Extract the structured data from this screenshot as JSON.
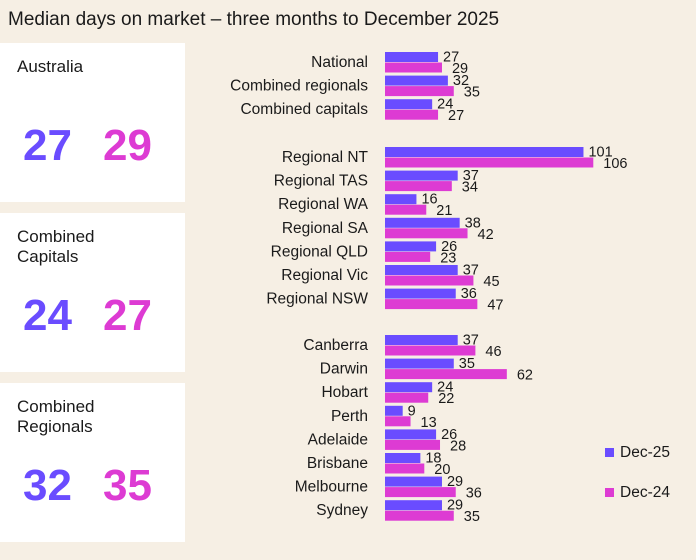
{
  "title": "Median days on market – three months to December 2025",
  "cards": [
    {
      "title": "Australia",
      "dec25": "27",
      "dec24": "29"
    },
    {
      "title": "Combined Capitals",
      "dec25": "24",
      "dec24": "27"
    },
    {
      "title": "Combined Regionals",
      "dec25": "32",
      "dec24": "35"
    }
  ],
  "colors": {
    "dec25": "#6a4cff",
    "dec24": "#dd3bd3",
    "background": "#f6efe4"
  },
  "legend": {
    "dec25": "Dec-25",
    "dec24": "Dec-24"
  },
  "chart_data": {
    "type": "bar",
    "orientation": "horizontal",
    "title": "Median days on market – three months to December 2025",
    "groups": [
      [
        "National",
        "Combined regionals",
        "Combined capitals"
      ],
      [
        "Regional NT",
        "Regional TAS",
        "Regional WA",
        "Regional SA",
        "Regional QLD",
        "Regional Vic",
        "Regional NSW"
      ],
      [
        "Canberra",
        "Darwin",
        "Hobart",
        "Perth",
        "Adelaide",
        "Brisbane",
        "Melbourne",
        "Sydney"
      ]
    ],
    "categories": [
      "National",
      "Combined regionals",
      "Combined capitals",
      "Regional NT",
      "Regional TAS",
      "Regional WA",
      "Regional SA",
      "Regional QLD",
      "Regional Vic",
      "Regional NSW",
      "Canberra",
      "Darwin",
      "Hobart",
      "Perth",
      "Adelaide",
      "Brisbane",
      "Melbourne",
      "Sydney"
    ],
    "series": [
      {
        "name": "Dec-25",
        "values": [
          27,
          32,
          24,
          101,
          37,
          16,
          38,
          26,
          37,
          36,
          37,
          35,
          24,
          9,
          26,
          18,
          29,
          29
        ]
      },
      {
        "name": "Dec-24",
        "values": [
          29,
          35,
          27,
          106,
          34,
          21,
          42,
          23,
          45,
          47,
          46,
          62,
          22,
          13,
          28,
          20,
          36,
          35
        ]
      }
    ],
    "legend_position": "bottom-right",
    "grid": false
  }
}
